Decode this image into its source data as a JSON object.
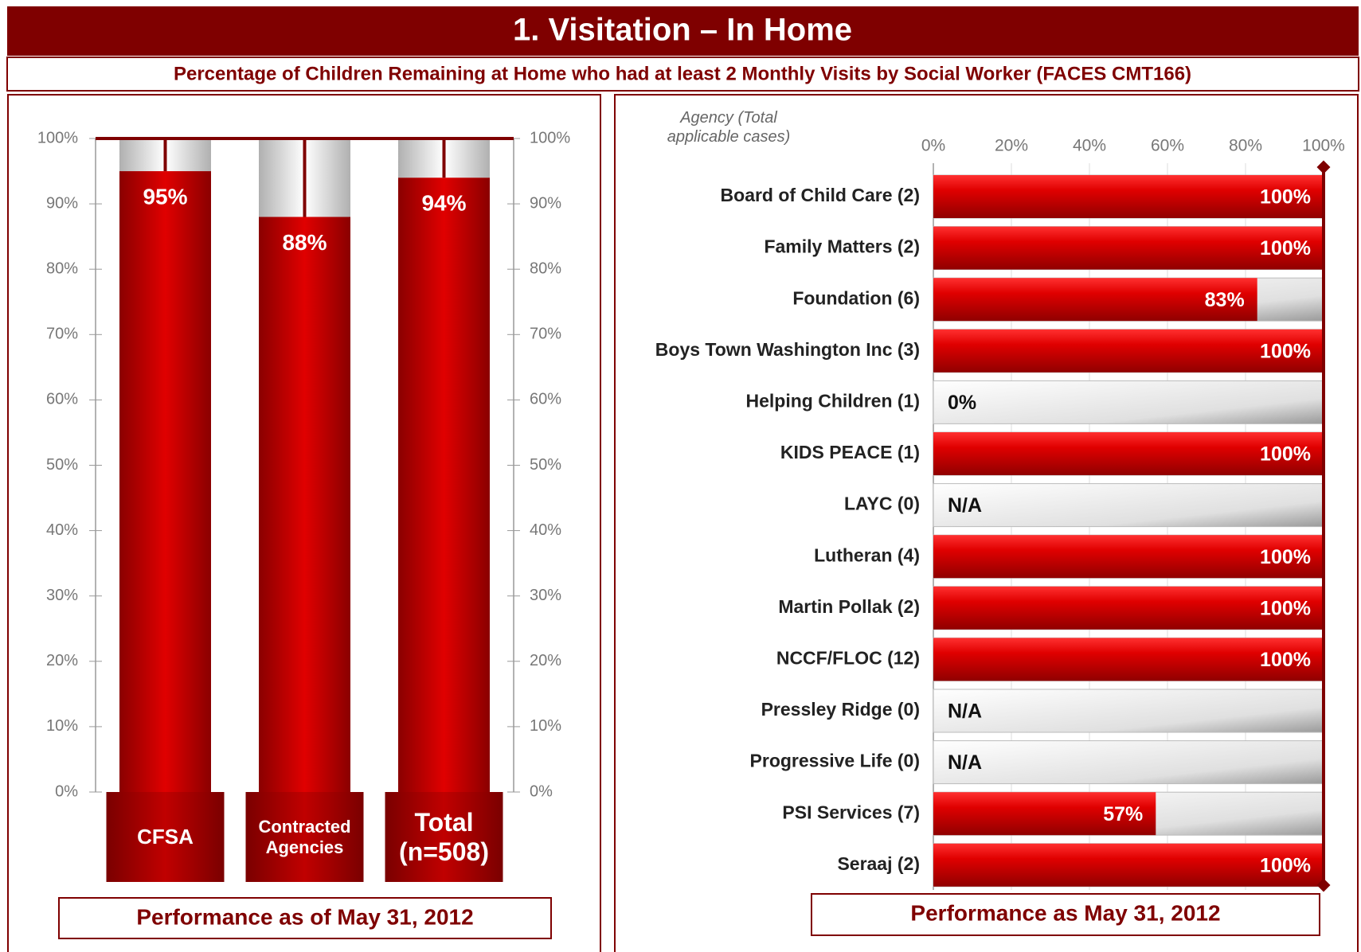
{
  "header": {
    "title": "1.   Visitation – In Home",
    "subtitle": "Percentage of Children Remaining at Home who had at least 2 Monthly Visits by Social Worker (FACES CMT166)"
  },
  "chart_data": [
    {
      "type": "bar",
      "horizontal": false,
      "color": "#e00000",
      "categories": [
        "CFSA",
        "Contracted Agencies",
        "Total (n=508)"
      ],
      "values": [
        95,
        88,
        94
      ],
      "value_labels": [
        "95%",
        "88%",
        "94%"
      ],
      "ylim": [
        0,
        100
      ],
      "yticks": [
        {
          "value": 0,
          "label": "0%"
        },
        {
          "value": 10,
          "label": "10%"
        },
        {
          "value": 20,
          "label": "20%"
        },
        {
          "value": 30,
          "label": "30%"
        },
        {
          "value": 40,
          "label": "40%"
        },
        {
          "value": 50,
          "label": "50%"
        },
        {
          "value": 60,
          "label": "60%"
        },
        {
          "value": 70,
          "label": "70%"
        },
        {
          "value": 80,
          "label": "80%"
        },
        {
          "value": 90,
          "label": "90%"
        },
        {
          "value": 100,
          "label": "100%"
        }
      ],
      "y2lim": [
        0,
        100
      ],
      "y2ticks": [
        {
          "value": 0,
          "label": "0%"
        },
        {
          "value": 10,
          "label": "10%"
        },
        {
          "value": 20,
          "label": "20%"
        },
        {
          "value": 30,
          "label": "30%"
        },
        {
          "value": 40,
          "label": "40%"
        },
        {
          "value": 50,
          "label": "50%"
        },
        {
          "value": 60,
          "label": "60%"
        },
        {
          "value": 70,
          "label": "70%"
        },
        {
          "value": 80,
          "label": "80%"
        },
        {
          "value": 90,
          "label": "90%"
        },
        {
          "value": 100,
          "label": "100%"
        }
      ],
      "footer": "Performance as of May 31, 2012"
    },
    {
      "type": "bar",
      "horizontal": true,
      "color": "#e00000",
      "axis_label": "Agency (Total applicable cases)",
      "categories": [
        "Board of Child Care (2)",
        "Family Matters (2)",
        "Foundation (6)",
        "Boys Town Washington Inc (3)",
        "Helping Children (1)",
        "KIDS PEACE (1)",
        "LAYC (0)",
        "Lutheran (4)",
        "Martin Pollak (2)",
        "NCCF/FLOC (12)",
        "Pressley Ridge (0)",
        "Progressive Life (0)",
        "PSI Services (7)",
        "Seraaj (2)"
      ],
      "values": [
        100,
        100,
        83,
        100,
        0,
        100,
        null,
        100,
        100,
        100,
        null,
        null,
        57,
        100
      ],
      "value_labels": [
        "100%",
        "100%",
        "83%",
        "100%",
        "0%",
        "100%",
        "N/A",
        "100%",
        "100%",
        "100%",
        "N/A",
        "N/A",
        "57%",
        "100%"
      ],
      "xlim": [
        0,
        100
      ],
      "xticks": [
        {
          "value": 0,
          "label": "0%"
        },
        {
          "value": 20,
          "label": "20%"
        },
        {
          "value": 40,
          "label": "40%"
        },
        {
          "value": 60,
          "label": "60%"
        },
        {
          "value": 80,
          "label": "80%"
        },
        {
          "value": 100,
          "label": "100%"
        }
      ],
      "footer": "Performance as May 31, 2012"
    }
  ]
}
